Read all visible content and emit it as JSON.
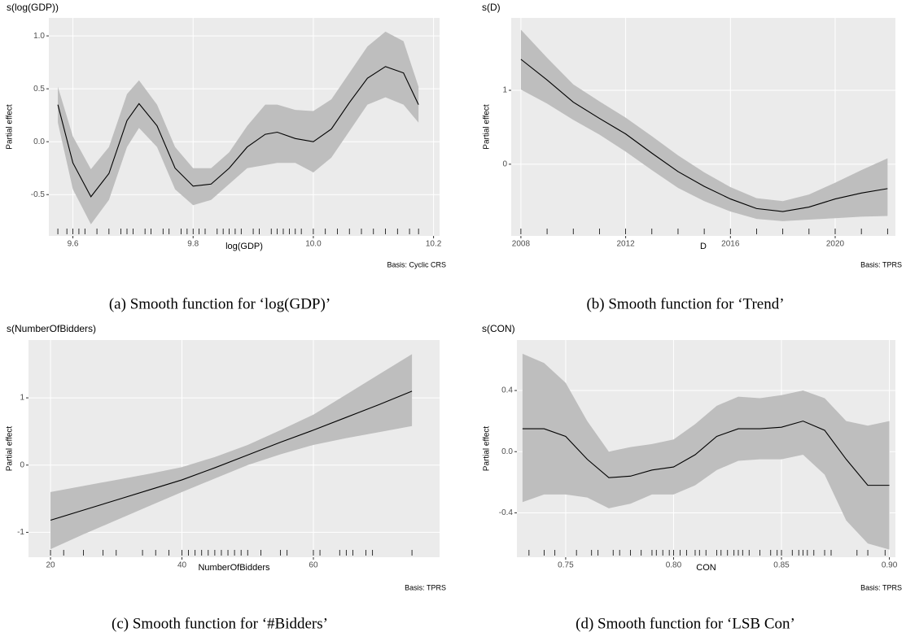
{
  "chart_data": [
    {
      "type": "line",
      "title": "s(log(GDP))",
      "xlabel": "log(GDP)",
      "ylabel": "Partial effect",
      "basis": "Basis: Cyclic CRS",
      "subcaption": "(a) Smooth function for ‘log(GDP)’",
      "color": "#000000",
      "band_color": "#bebebe",
      "background": "#ebebeb",
      "grid": true,
      "x": [
        9.575,
        9.6,
        9.63,
        9.66,
        9.69,
        9.71,
        9.74,
        9.77,
        9.8,
        9.83,
        9.86,
        9.89,
        9.92,
        9.94,
        9.97,
        10.0,
        10.03,
        10.06,
        10.09,
        10.12,
        10.15,
        10.175
      ],
      "values": [
        0.35,
        -0.2,
        -0.52,
        -0.3,
        0.2,
        0.36,
        0.15,
        -0.25,
        -0.42,
        -0.4,
        -0.25,
        -0.05,
        0.07,
        0.09,
        0.03,
        0.0,
        0.12,
        0.37,
        0.6,
        0.71,
        0.65,
        0.35
      ],
      "lower": [
        0.18,
        -0.45,
        -0.78,
        -0.55,
        -0.05,
        0.13,
        -0.05,
        -0.45,
        -0.6,
        -0.55,
        -0.4,
        -0.25,
        -0.22,
        -0.2,
        -0.2,
        -0.29,
        -0.15,
        0.1,
        0.35,
        0.42,
        0.35,
        0.18
      ],
      "upper": [
        0.52,
        0.05,
        -0.26,
        -0.05,
        0.45,
        0.58,
        0.35,
        -0.05,
        -0.25,
        -0.25,
        -0.1,
        0.15,
        0.35,
        0.35,
        0.3,
        0.29,
        0.4,
        0.65,
        0.9,
        1.04,
        0.95,
        0.52
      ],
      "rug": [
        9.575,
        9.59,
        9.6,
        9.61,
        9.62,
        9.64,
        9.66,
        9.68,
        9.69,
        9.7,
        9.72,
        9.73,
        9.75,
        9.76,
        9.78,
        9.79,
        9.8,
        9.81,
        9.82,
        9.84,
        9.85,
        9.86,
        9.87,
        9.88,
        9.9,
        9.91,
        9.93,
        9.94,
        9.95,
        9.96,
        9.97,
        9.98,
        10.0,
        10.02,
        10.04,
        10.06,
        10.08,
        10.1,
        10.12,
        10.14,
        10.16,
        10.175
      ],
      "xlim": [
        9.56,
        10.21
      ],
      "xticks": [
        9.6,
        9.8,
        {
          "value": 10.0,
          "label": "10.0"
        },
        10.2
      ],
      "ylim": [
        -0.89,
        1.17
      ],
      "yticks": [
        -0.5,
        {
          "value": 0,
          "label": "0.0"
        },
        0.5,
        {
          "value": 1.0,
          "label": "1.0"
        }
      ]
    },
    {
      "type": "line",
      "title": "s(D)",
      "xlabel": "D",
      "ylabel": "Partial effect",
      "basis": "Basis: TPRS",
      "subcaption": "(b) Smooth function for ‘Trend’",
      "color": "#000000",
      "band_color": "#bebebe",
      "background": "#ebebeb",
      "grid": true,
      "x": [
        2008,
        2009,
        2010,
        2011,
        2012,
        2013,
        2014,
        2015,
        2016,
        2017,
        2018,
        2019,
        2020,
        2021,
        2022
      ],
      "values": [
        1.42,
        1.14,
        0.84,
        0.62,
        0.41,
        0.15,
        -0.1,
        -0.3,
        -0.47,
        -0.6,
        -0.64,
        -0.58,
        -0.47,
        -0.39,
        -0.33
      ],
      "lower": [
        1.01,
        0.82,
        0.6,
        0.4,
        0.17,
        -0.08,
        -0.32,
        -0.5,
        -0.64,
        -0.74,
        -0.77,
        -0.75,
        -0.73,
        -0.71,
        -0.7
      ],
      "upper": [
        1.82,
        1.44,
        1.08,
        0.85,
        0.63,
        0.38,
        0.12,
        -0.11,
        -0.31,
        -0.46,
        -0.5,
        -0.41,
        -0.25,
        -0.08,
        0.08
      ],
      "rug": [
        2008,
        2009,
        2010,
        2011,
        2012,
        2013,
        2014,
        2015,
        2016,
        2017,
        2018,
        2019,
        2020,
        2021,
        2022
      ],
      "xlim": [
        2007.63,
        2022.3
      ],
      "xticks": [
        2008,
        2012,
        2016,
        2020
      ],
      "ylim": [
        -0.97,
        1.98
      ],
      "yticks": [
        0,
        1
      ]
    },
    {
      "type": "line",
      "title": "s(NumberOfBidders)",
      "xlabel": "NumberOfBidders",
      "ylabel": "Partial effect",
      "basis": "Basis: TPRS",
      "subcaption": "(c) Smooth function for ‘#Bidders’",
      "color": "#000000",
      "band_color": "#bebebe",
      "background": "#ebebeb",
      "grid": true,
      "x": [
        20,
        25,
        30,
        35,
        40,
        45,
        50,
        55,
        60,
        65,
        70,
        75
      ],
      "values": [
        -0.82,
        -0.67,
        -0.52,
        -0.37,
        -0.22,
        -0.04,
        0.15,
        0.34,
        0.52,
        0.71,
        0.9,
        1.1
      ],
      "lower": [
        -1.25,
        -1.03,
        -0.82,
        -0.61,
        -0.4,
        -0.2,
        0.0,
        0.16,
        0.3,
        0.4,
        0.49,
        0.58
      ],
      "upper": [
        -0.4,
        -0.31,
        -0.22,
        -0.13,
        -0.03,
        0.12,
        0.3,
        0.52,
        0.75,
        1.05,
        1.35,
        1.65
      ],
      "rug": [
        20,
        22,
        25,
        28,
        30,
        34,
        36,
        38,
        40,
        41,
        42,
        43,
        44,
        45,
        46,
        47,
        48,
        49,
        50,
        52,
        55,
        56,
        60,
        61,
        64,
        65,
        66,
        68,
        69,
        75
      ],
      "xlim": [
        16.65,
        79.2
      ],
      "xticks": [
        20,
        40,
        60
      ],
      "ylim": [
        -1.37,
        1.86
      ],
      "yticks": [
        -1,
        0,
        1
      ]
    },
    {
      "type": "line",
      "title": "s(CON)",
      "xlabel": "CON",
      "ylabel": "Partial effect",
      "basis": "Basis: TPRS",
      "subcaption": "(d) Smooth function for ‘LSB Con’",
      "color": "#000000",
      "band_color": "#bebebe",
      "background": "#ebebeb",
      "grid": true,
      "x": [
        0.73,
        0.74,
        0.75,
        0.76,
        0.77,
        0.78,
        0.79,
        0.8,
        0.81,
        0.82,
        0.83,
        0.84,
        0.85,
        0.86,
        0.87,
        0.88,
        0.89,
        0.9
      ],
      "values": [
        0.15,
        0.15,
        0.1,
        -0.05,
        -0.17,
        -0.16,
        -0.12,
        -0.1,
        -0.02,
        0.1,
        0.15,
        0.15,
        0.16,
        0.2,
        0.14,
        -0.05,
        -0.22,
        -0.22
      ],
      "lower": [
        -0.33,
        -0.28,
        -0.28,
        -0.3,
        -0.37,
        -0.34,
        -0.28,
        -0.28,
        -0.22,
        -0.12,
        -0.06,
        -0.05,
        -0.05,
        -0.02,
        -0.15,
        -0.45,
        -0.6,
        -0.64
      ],
      "upper": [
        0.64,
        0.58,
        0.45,
        0.2,
        0.0,
        0.03,
        0.05,
        0.08,
        0.18,
        0.3,
        0.36,
        0.35,
        0.37,
        0.4,
        0.35,
        0.2,
        0.17,
        0.2
      ],
      "rug": [
        0.733,
        0.74,
        0.745,
        0.755,
        0.762,
        0.765,
        0.772,
        0.775,
        0.78,
        0.785,
        0.79,
        0.792,
        0.795,
        0.798,
        0.8,
        0.803,
        0.806,
        0.81,
        0.812,
        0.815,
        0.82,
        0.822,
        0.825,
        0.828,
        0.83,
        0.832,
        0.835,
        0.84,
        0.845,
        0.848,
        0.85,
        0.855,
        0.858,
        0.86,
        0.862,
        0.865,
        0.87,
        0.873,
        0.885,
        0.89,
        0.898
      ],
      "xlim": [
        0.7274,
        0.9028
      ],
      "xticks": [
        {
          "value": 0.75,
          "label": "0.75"
        },
        {
          "value": 0.8,
          "label": "0.80"
        },
        0.85,
        {
          "value": 0.9,
          "label": "0.90"
        }
      ],
      "ylim": [
        -0.69,
        0.73
      ],
      "yticks": [
        -0.4,
        {
          "value": 0,
          "label": "0.0"
        },
        0.4
      ]
    }
  ]
}
